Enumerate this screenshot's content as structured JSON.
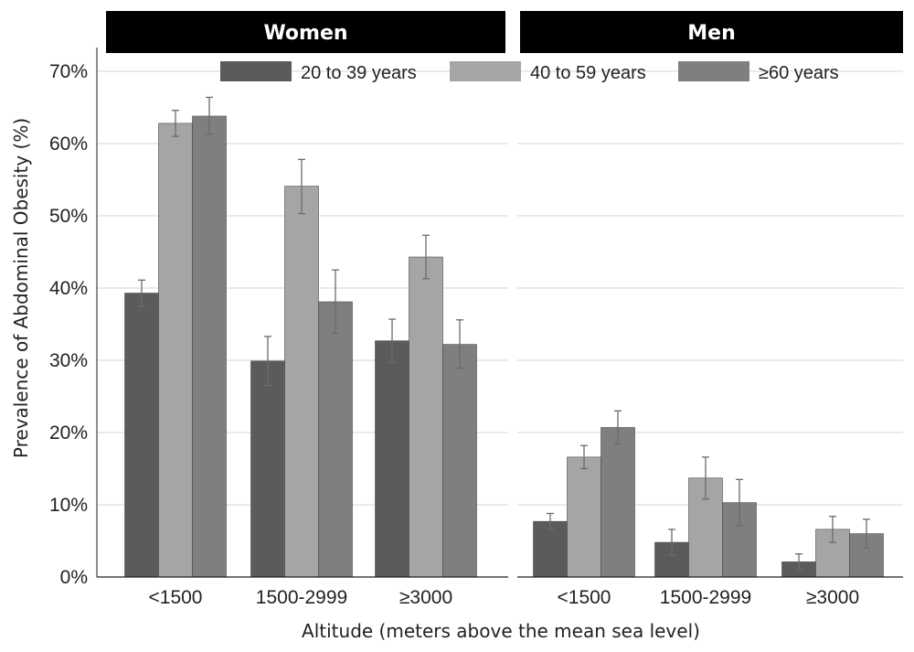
{
  "chart_data": {
    "type": "bar",
    "xlabel": "Altitude (meters above the mean sea level)",
    "ylabel": "Prevalence of Abdominal Obesity (%)",
    "ylim": [
      0,
      70
    ],
    "yticks": [
      "0%",
      "10%",
      "20%",
      "30%",
      "40%",
      "50%",
      "60%",
      "70%"
    ],
    "categories": [
      "<1500",
      "1500-2999",
      "≥3000"
    ],
    "grid": "horizontal",
    "legend_position": "top",
    "error_bars": true,
    "colors": [
      "#5b5b5b",
      "#a5a5a5",
      "#7f7f7f"
    ],
    "panels": [
      {
        "title": "Women",
        "series": [
          {
            "name": "20 to 39 years",
            "values": [
              39.3,
              29.9,
              32.7
            ],
            "lower": [
              37.5,
              26.5,
              29.7
            ],
            "upper": [
              41.1,
              33.3,
              35.7
            ]
          },
          {
            "name": "40 to 59 years",
            "values": [
              62.8,
              54.1,
              44.3
            ],
            "lower": [
              61.0,
              50.3,
              41.3
            ],
            "upper": [
              64.6,
              57.8,
              47.3
            ]
          },
          {
            "name": "≥60 years",
            "values": [
              63.8,
              38.1,
              32.2
            ],
            "lower": [
              61.3,
              33.7,
              28.9
            ],
            "upper": [
              66.4,
              42.5,
              35.6
            ]
          }
        ]
      },
      {
        "title": "Men",
        "series": [
          {
            "name": "20 to 39 years",
            "values": [
              7.7,
              4.8,
              2.1
            ],
            "lower": [
              6.6,
              3.0,
              1.0
            ],
            "upper": [
              8.8,
              6.6,
              3.2
            ]
          },
          {
            "name": "40 to 59 years",
            "values": [
              16.6,
              13.7,
              6.6
            ],
            "lower": [
              15.0,
              10.8,
              4.8
            ],
            "upper": [
              18.2,
              16.6,
              8.4
            ]
          },
          {
            "name": "≥60 years",
            "values": [
              20.7,
              10.3,
              6.0
            ],
            "lower": [
              18.4,
              7.1,
              4.0
            ],
            "upper": [
              23.0,
              13.5,
              8.0
            ]
          }
        ]
      }
    ]
  }
}
